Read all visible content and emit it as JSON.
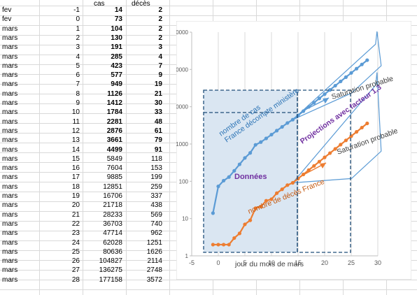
{
  "sheet": {
    "header_cas": "cas",
    "header_deces": "décès",
    "rows": [
      {
        "mois": "fev",
        "jour": "-1",
        "cas": "14",
        "deces": "2",
        "bold": true
      },
      {
        "mois": "fev",
        "jour": "0",
        "cas": "73",
        "deces": "2",
        "bold": true
      },
      {
        "mois": "mars",
        "jour": "1",
        "cas": "104",
        "deces": "2",
        "bold": true
      },
      {
        "mois": "mars",
        "jour": "2",
        "cas": "130",
        "deces": "2",
        "bold": true
      },
      {
        "mois": "mars",
        "jour": "3",
        "cas": "191",
        "deces": "3",
        "bold": true
      },
      {
        "mois": "mars",
        "jour": "4",
        "cas": "285",
        "deces": "4",
        "bold": true
      },
      {
        "mois": "mars",
        "jour": "5",
        "cas": "423",
        "deces": "7",
        "bold": true
      },
      {
        "mois": "mars",
        "jour": "6",
        "cas": "577",
        "deces": "9",
        "bold": true
      },
      {
        "mois": "mars",
        "jour": "7",
        "cas": "949",
        "deces": "19",
        "bold": true
      },
      {
        "mois": "mars",
        "jour": "8",
        "cas": "1126",
        "deces": "21",
        "bold": true
      },
      {
        "mois": "mars",
        "jour": "9",
        "cas": "1412",
        "deces": "30",
        "bold": true
      },
      {
        "mois": "mars",
        "jour": "10",
        "cas": "1784",
        "deces": "33",
        "bold": true
      },
      {
        "mois": "mars",
        "jour": "11",
        "cas": "2281",
        "deces": "48",
        "bold": true
      },
      {
        "mois": "mars",
        "jour": "12",
        "cas": "2876",
        "deces": "61",
        "bold": true
      },
      {
        "mois": "mars",
        "jour": "13",
        "cas": "3661",
        "deces": "79",
        "bold": true
      },
      {
        "mois": "mars",
        "jour": "14",
        "cas": "4499",
        "deces": "91",
        "bold": true
      },
      {
        "mois": "mars",
        "jour": "15",
        "cas": "5849",
        "deces": "118",
        "bold": false
      },
      {
        "mois": "mars",
        "jour": "16",
        "cas": "7604",
        "deces": "153",
        "bold": false
      },
      {
        "mois": "mars",
        "jour": "17",
        "cas": "9885",
        "deces": "199",
        "bold": false
      },
      {
        "mois": "mars",
        "jour": "18",
        "cas": "12851",
        "deces": "259",
        "bold": false
      },
      {
        "mois": "mars",
        "jour": "19",
        "cas": "16706",
        "deces": "337",
        "bold": false
      },
      {
        "mois": "mars",
        "jour": "20",
        "cas": "21718",
        "deces": "438",
        "bold": false
      },
      {
        "mois": "mars",
        "jour": "21",
        "cas": "28233",
        "deces": "569",
        "bold": false
      },
      {
        "mois": "mars",
        "jour": "22",
        "cas": "36703",
        "deces": "740",
        "bold": false
      },
      {
        "mois": "mars",
        "jour": "23",
        "cas": "47714",
        "deces": "962",
        "bold": false
      },
      {
        "mois": "mars",
        "jour": "24",
        "cas": "62028",
        "deces": "1251",
        "bold": false
      },
      {
        "mois": "mars",
        "jour": "25",
        "cas": "80636",
        "deces": "1626",
        "bold": false
      },
      {
        "mois": "mars",
        "jour": "26",
        "cas": "104827",
        "deces": "2114",
        "bold": false
      },
      {
        "mois": "mars",
        "jour": "27",
        "cas": "136275",
        "deces": "2748",
        "bold": false
      },
      {
        "mois": "mars",
        "jour": "28",
        "cas": "177158",
        "deces": "3572",
        "bold": false
      }
    ]
  },
  "chart_data": {
    "type": "scatter",
    "xlabel": "jour du mois de mars",
    "ylabel": "",
    "xlim": [
      -5,
      30
    ],
    "ylim": [
      1,
      1000000
    ],
    "y_scale": "log",
    "x_ticks": [
      "-5",
      "0",
      "5",
      "10",
      "15",
      "20",
      "25",
      "30"
    ],
    "y_ticks": [
      "1",
      "10",
      "100",
      "1000",
      "10000",
      "100000",
      "1000000"
    ],
    "grid": "vertical",
    "colors": {
      "cas": "#5b9bd5",
      "deces": "#ed7d31",
      "annotation_purple": "#7030a0",
      "box": "#1f4e79",
      "cone": "#5b9bd5",
      "saturation_text": "#404040"
    },
    "series": [
      {
        "name": "nombre de cas",
        "x": [
          -1,
          0,
          1,
          2,
          3,
          4,
          5,
          6,
          7,
          8,
          9,
          10,
          11,
          12,
          13,
          14,
          15,
          16,
          17,
          18,
          19,
          20,
          21,
          22,
          23,
          24,
          25,
          26,
          27,
          28
        ],
        "y": [
          14,
          73,
          104,
          130,
          191,
          285,
          423,
          577,
          949,
          1126,
          1412,
          1784,
          2281,
          2876,
          3661,
          4499,
          5849,
          7604,
          9885,
          12851,
          16706,
          21718,
          28233,
          36703,
          47714,
          62028,
          80636,
          104827,
          136275,
          177158
        ]
      },
      {
        "name": "nombre de décès France",
        "x": [
          -1,
          0,
          1,
          2,
          3,
          4,
          5,
          6,
          7,
          8,
          9,
          10,
          11,
          12,
          13,
          14,
          15,
          16,
          17,
          18,
          19,
          20,
          21,
          22,
          23,
          24,
          25,
          26,
          27,
          28
        ],
        "y": [
          2,
          2,
          2,
          2,
          3,
          4,
          7,
          9,
          19,
          21,
          30,
          33,
          48,
          61,
          79,
          91,
          118,
          153,
          199,
          259,
          337,
          438,
          569,
          740,
          962,
          1251,
          1626,
          2114,
          2748,
          3572
        ]
      }
    ],
    "annotations": {
      "cas_label_1": "nombre de cas",
      "cas_label_2": "France décompte ministère",
      "donnees": "Données",
      "deces_label": "nombre de décès France",
      "projections": "Projections avec facteur 1,3",
      "saturation_1": "Saturation probable",
      "saturation_2": "Saturation probable"
    }
  }
}
